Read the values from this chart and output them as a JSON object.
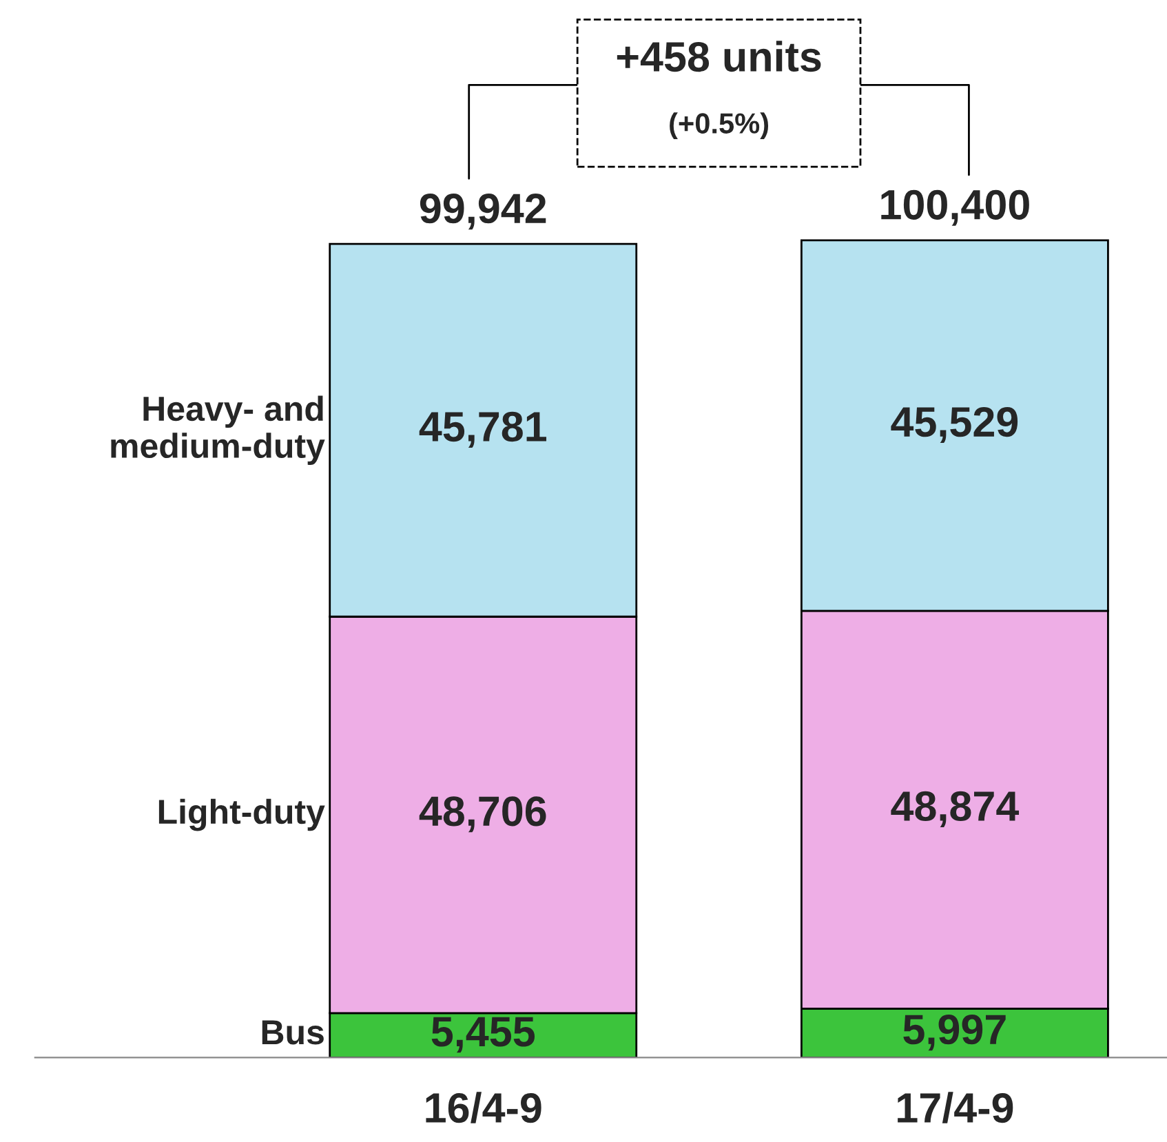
{
  "chart_data": {
    "type": "bar",
    "stacked": true,
    "categories": [
      "16/4-9",
      "17/4-9"
    ],
    "series": [
      {
        "name": "Bus",
        "color": "#3cc43c",
        "values": [
          5455,
          5997
        ],
        "value_labels": [
          "5,455",
          "5,997"
        ]
      },
      {
        "name": "Light-duty",
        "color": "#eeaee6",
        "values": [
          48706,
          48874
        ],
        "value_labels": [
          "48,706",
          "48,874"
        ]
      },
      {
        "name": "Heavy- and medium-duty",
        "color": "#b6e2f0",
        "values": [
          45781,
          45529
        ],
        "value_labels": [
          "45,781",
          "45,529"
        ]
      }
    ],
    "totals": [
      "99,942",
      "100,400"
    ],
    "annotations": [
      "+458 units",
      "(+0.5%)"
    ]
  }
}
